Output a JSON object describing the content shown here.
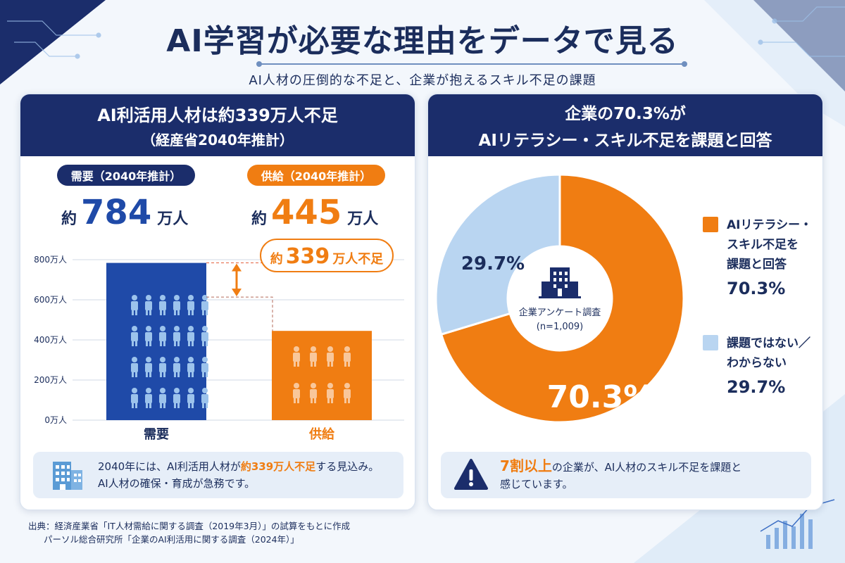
{
  "header": {
    "title": "AI学習が必要な理由をデータで見る",
    "subtitle": "AI人材の圧倒的な不足と、企業が抱えるスキル不足の課題"
  },
  "left_panel": {
    "heading_line1": "AI利活用人材は約339万人不足",
    "heading_line2": "（経産省2040年推計）",
    "demand_label": "需要（2040年推計）",
    "supply_label": "供給（2040年推計）",
    "demand_prefix": "約",
    "demand_value": "784",
    "demand_unit": "万人",
    "supply_prefix": "約",
    "supply_value": "445",
    "supply_unit": "万人",
    "gap_prefix": "約",
    "gap_value": "339",
    "gap_suffix": "万人不足",
    "note_line1_a": "2040年には、AI利活用人材が",
    "note_line1_hl": "約339万人不足",
    "note_line1_b": "する見込み。",
    "note_line2": "AI人材の確保・育成が急務です。"
  },
  "right_panel": {
    "heading_line1": "企業の70.3%が",
    "heading_line2": "AIリテラシー・スキル不足を課題と回答",
    "center_label": "企業アンケート調査",
    "center_n": "(n=1,009)",
    "legend": [
      {
        "text_lines": [
          "AIリテラシー・",
          "スキル不足を",
          "課題と回答"
        ],
        "value": "70.3%"
      },
      {
        "text_lines": [
          "課題ではない／",
          "わからない"
        ],
        "value": "29.7%"
      }
    ],
    "note_hl": "7割以上",
    "note_a": "の企業が、AI人材のスキル不足を課題と",
    "note_b": "感じています。"
  },
  "source": {
    "line1": "出典：経済産業省「IT人材需給に関する調査（2019年3月）」の試算をもとに作成",
    "line2": "パーソル総合研究所「企業のAI利活用に関する調査（2024年）」"
  },
  "colors": {
    "navy": "#1b2d6b",
    "blue": "#1f4aa8",
    "orange": "#f07d12",
    "light_blue": "#b9d5f1",
    "note_bg": "#e6eef8"
  },
  "chart_data": [
    {
      "type": "bar",
      "categories": [
        "需要",
        "供給"
      ],
      "values": [
        784,
        445
      ],
      "ylabel": "",
      "unit": "万人",
      "ylim": [
        0,
        800
      ],
      "yticks": [
        0,
        200,
        400,
        600,
        800
      ],
      "ytick_labels": [
        "0万人",
        "200万人",
        "400万人",
        "600万人",
        "800万人"
      ],
      "grid": true
    },
    {
      "type": "pie",
      "donut": true,
      "labels": [
        "AIリテラシー・スキル不足を課題と回答",
        "課題ではない／わからない"
      ],
      "values": [
        70.3,
        29.7
      ],
      "value_labels": [
        "70.3%",
        "29.7%"
      ],
      "colors": [
        "#f07d12",
        "#b9d5f1"
      ],
      "legend": "right"
    }
  ]
}
